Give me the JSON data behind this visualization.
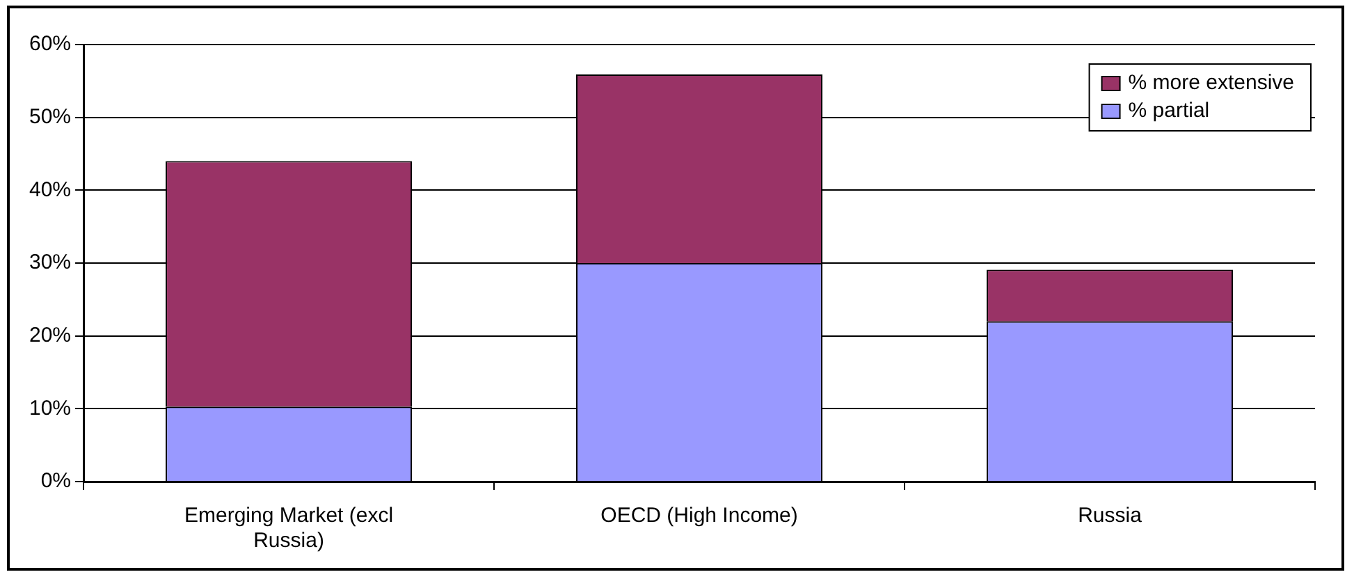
{
  "chart_data": {
    "type": "bar",
    "stacked": true,
    "categories": [
      "Emerging Market (excl Russia)",
      "OECD (High Income)",
      "Russia"
    ],
    "series": [
      {
        "name": "% partial",
        "color": "#9999ff",
        "values": [
          10.3,
          30,
          22
        ]
      },
      {
        "name": "% more extensive",
        "color": "#993366",
        "values": [
          33.7,
          25.9,
          7.1
        ]
      }
    ],
    "ylim": [
      0,
      60
    ],
    "yticks": [
      {
        "value": 0,
        "label": "0%"
      },
      {
        "value": 10,
        "label": "10%"
      },
      {
        "value": 20,
        "label": "20%"
      },
      {
        "value": 30,
        "label": "30%"
      },
      {
        "value": 40,
        "label": "40%"
      },
      {
        "value": 50,
        "label": "50%"
      },
      {
        "value": 60,
        "label": "60%"
      }
    ],
    "grid": "y",
    "legend": "top right"
  }
}
